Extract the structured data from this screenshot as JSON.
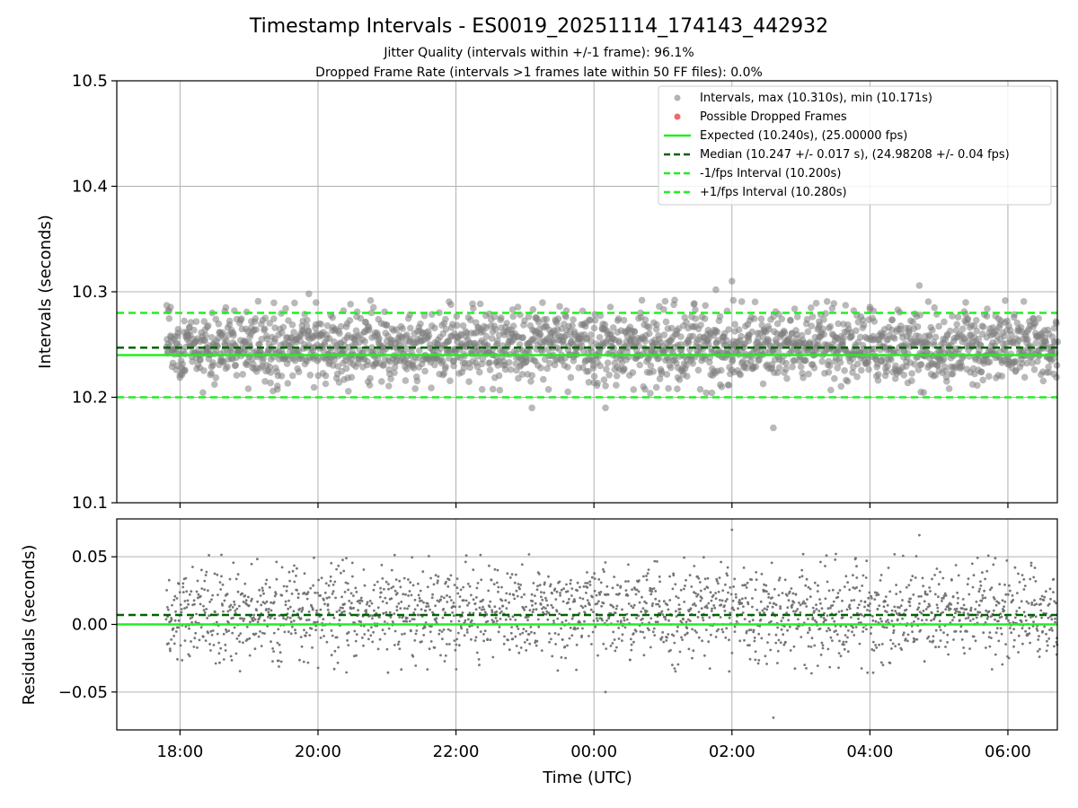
{
  "chart_data": [
    {
      "type": "scatter",
      "title": "Timestamp Intervals - ES0019_20251114_174143_442932",
      "subtitle_lines": [
        "Jitter Quality (intervals within +/-1 frame): 96.1%",
        "Dropped Frame Rate (intervals >1 frames late within 50 FF files): 0.0%"
      ],
      "xlabel": "",
      "ylabel": "Intervals (seconds)",
      "ylim": [
        10.1,
        10.5
      ],
      "yticks": [
        10.1,
        10.2,
        10.3,
        10.4,
        10.5
      ],
      "ytick_labels": [
        "10.1",
        "10.2",
        "10.3",
        "10.4",
        "10.5"
      ],
      "xlim": [
        "17:05",
        "06:43"
      ],
      "grid": true,
      "legend_position": "top-right",
      "series": [
        {
          "name": "Intervals, max (10.310s), min (10.171s)",
          "kind": "scatter",
          "color": "#808080",
          "center": 10.248,
          "spread": 0.017,
          "count": 2200,
          "outliers": [
            {
              "x": "02:00",
              "y": 10.31
            },
            {
              "x": "02:36",
              "y": 10.171
            },
            {
              "x": "04:43",
              "y": 10.306
            },
            {
              "x": "01:46",
              "y": 10.302
            },
            {
              "x": "00:10",
              "y": 10.19
            },
            {
              "x": "19:52",
              "y": 10.298
            },
            {
              "x": "23:06",
              "y": 10.19
            }
          ]
        },
        {
          "name": "Possible Dropped Frames",
          "kind": "scatter",
          "color": "#f0585c",
          "values": []
        },
        {
          "name": "Expected (10.240s), (25.00000 fps)",
          "kind": "hline",
          "y": 10.24,
          "color": "#22ee22",
          "style": "solid"
        },
        {
          "name": "Median (10.247 +/- 0.017 s), (24.98208 +/- 0.04 fps)",
          "kind": "hline",
          "y": 10.247,
          "color": "#006400",
          "style": "dashed"
        },
        {
          "name": "-1/fps Interval (10.200s)",
          "kind": "hline",
          "y": 10.2,
          "color": "#22ee22",
          "style": "dashed"
        },
        {
          "name": "+1/fps Interval (10.280s)",
          "kind": "hline",
          "y": 10.28,
          "color": "#22ee22",
          "style": "dashed"
        }
      ]
    },
    {
      "type": "scatter",
      "title": "",
      "xlabel": "Time (UTC)",
      "ylabel": "Residuals (seconds)",
      "ylim": [
        -0.078,
        0.078
      ],
      "yticks": [
        -0.05,
        0.0,
        0.05
      ],
      "ytick_labels": [
        "−0.05",
        "0.00",
        "0.05"
      ],
      "xlim": [
        "17:05",
        "06:43"
      ],
      "xticks": [
        "18:00",
        "20:00",
        "22:00",
        "00:00",
        "02:00",
        "04:00",
        "06:00"
      ],
      "grid": true,
      "series": [
        {
          "name": "Residuals",
          "kind": "scatter",
          "color": "#707070",
          "center": 0.008,
          "spread": 0.017,
          "count": 2200,
          "outliers": [
            {
              "x": "02:00",
              "y": 0.07
            },
            {
              "x": "02:36",
              "y": -0.069
            },
            {
              "x": "04:43",
              "y": 0.066
            },
            {
              "x": "00:10",
              "y": -0.05
            }
          ]
        },
        {
          "name": "Expected",
          "kind": "hline",
          "y": 0.0,
          "color": "#22ee22",
          "style": "solid"
        },
        {
          "name": "Median",
          "kind": "hline",
          "y": 0.007,
          "color": "#006400",
          "style": "dashed"
        }
      ]
    }
  ],
  "colors": {
    "scatter": "#808080",
    "dropped": "#f0585c",
    "expected": "#22ee22",
    "median": "#006400",
    "grid": "#b0b0b0"
  }
}
